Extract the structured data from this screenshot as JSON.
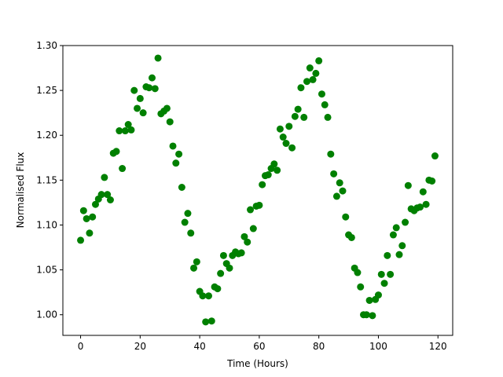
{
  "chart_data": {
    "type": "scatter",
    "xlabel": "Time (Hours)",
    "ylabel": "Normalised Flux",
    "series": [
      {
        "color": "#008000",
        "x": [
          0,
          1,
          2,
          3,
          4,
          5,
          6,
          7,
          8,
          9,
          10,
          11,
          12,
          13,
          14,
          15,
          16,
          17,
          18,
          19,
          20,
          21,
          22,
          23,
          24,
          25,
          26,
          27,
          28,
          29,
          30,
          31,
          32,
          33,
          34,
          35,
          36,
          37,
          38,
          39,
          40,
          41,
          42,
          43,
          44,
          45,
          46,
          47,
          48,
          49,
          50,
          51,
          52,
          53,
          54,
          55,
          56,
          57,
          58,
          59,
          60,
          61,
          62,
          63,
          64,
          65,
          66,
          67,
          68,
          69,
          70,
          71,
          72,
          73,
          74,
          75,
          76,
          77,
          78,
          79,
          80,
          81,
          82,
          83,
          84,
          85,
          86,
          87,
          88,
          89,
          90,
          91,
          92,
          93,
          94,
          95,
          96,
          97,
          98,
          99,
          100,
          101,
          102,
          103,
          104,
          105,
          106,
          107,
          108,
          109,
          110,
          111,
          112,
          113,
          114,
          115,
          116,
          117,
          118,
          119
        ],
        "values": [
          1.083,
          1.116,
          1.107,
          1.091,
          1.109,
          1.123,
          1.129,
          1.134,
          1.153,
          1.134,
          1.128,
          1.18,
          1.182,
          1.205,
          1.163,
          1.205,
          1.212,
          1.206,
          1.25,
          1.23,
          1.241,
          1.225,
          1.254,
          1.253,
          1.264,
          1.252,
          1.286,
          1.224,
          1.227,
          1.23,
          1.215,
          1.188,
          1.169,
          1.179,
          1.142,
          1.103,
          1.113,
          1.091,
          1.052,
          1.059,
          1.026,
          1.021,
          0.992,
          1.021,
          0.993,
          1.031,
          1.029,
          1.046,
          1.066,
          1.057,
          1.052,
          1.066,
          1.07,
          1.068,
          1.069,
          1.087,
          1.081,
          1.117,
          1.096,
          1.121,
          1.122,
          1.145,
          1.155,
          1.156,
          1.163,
          1.168,
          1.161,
          1.207,
          1.198,
          1.191,
          1.21,
          1.186,
          1.221,
          1.229,
          1.253,
          1.22,
          1.26,
          1.275,
          1.262,
          1.269,
          1.283,
          1.246,
          1.234,
          1.22,
          1.179,
          1.157,
          1.132,
          1.147,
          1.138,
          1.109,
          1.089,
          1.086,
          1.052,
          1.047,
          1.031,
          1.0,
          1.0,
          1.016,
          0.999,
          1.017,
          1.022,
          1.045,
          1.035,
          1.066,
          1.045,
          1.089,
          1.097,
          1.067,
          1.077,
          1.103,
          1.144,
          1.118,
          1.116,
          1.119,
          1.12,
          1.137,
          1.123,
          1.15,
          1.149,
          1.177
        ]
      }
    ],
    "xlim": [
      -5.95,
      124.95
    ],
    "xticks": [
      0,
      20,
      40,
      60,
      80,
      100,
      120
    ],
    "ylim": [
      0.977,
      1.3
    ],
    "yticks": [
      {
        "value": 1.0,
        "label": "1.00"
      },
      {
        "value": 1.05,
        "label": "1.05"
      },
      {
        "value": 1.1,
        "label": "1.10"
      },
      {
        "value": 1.15,
        "label": "1.15"
      },
      {
        "value": 1.2,
        "label": "1.20"
      },
      {
        "value": 1.25,
        "label": "1.25"
      },
      {
        "value": 1.3,
        "label": "1.30"
      }
    ],
    "grid": false
  }
}
